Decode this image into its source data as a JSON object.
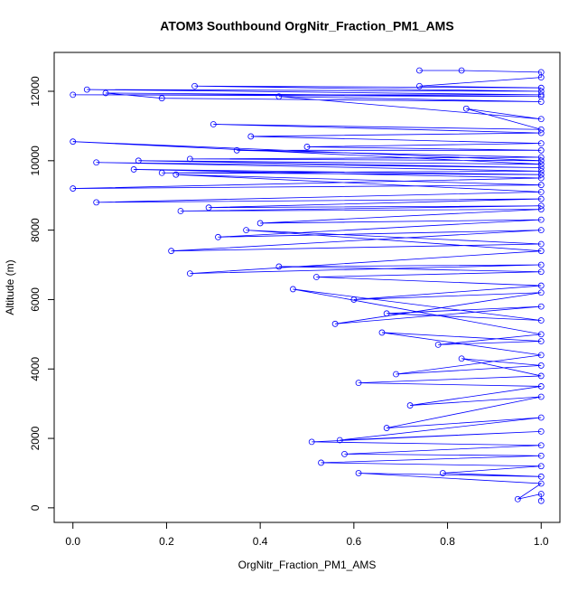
{
  "chart_data": {
    "type": "line",
    "title": "ATOM3 Southbound OrgNitr_Fraction_PM1_AMS",
    "x_label": "OrgNitr_Fraction_PM1_AMS",
    "y_label": "Altitude (m)",
    "xlim": [
      -0.04,
      1.04
    ],
    "ylim": [
      -420,
      13120
    ],
    "xticks": [
      {
        "value": 0,
        "label": "0.0"
      },
      0.2,
      0.4,
      0.6,
      0.8,
      {
        "value": 1,
        "label": "1.0"
      }
    ],
    "yticks": [
      0,
      2000,
      4000,
      6000,
      8000,
      10000,
      12000
    ],
    "x": [
      0.74,
      0.83,
      1,
      1,
      0.74,
      1,
      0.26,
      1,
      0.03,
      1,
      0.0,
      1,
      0.07,
      0.19,
      1,
      0.44,
      1,
      0.84,
      1,
      0.3,
      1,
      0.38,
      1,
      0.5,
      1,
      0.35,
      1,
      0.25,
      1,
      0.0,
      1,
      0.14,
      1,
      0.05,
      1,
      0.19,
      1,
      0.13,
      1,
      0.0,
      1,
      0.22,
      1,
      0.05,
      1,
      0.29,
      1,
      0.23,
      1,
      0.4,
      1,
      0.31,
      1,
      0.21,
      1,
      0.37,
      1,
      0.25,
      1,
      0.44,
      1,
      0.52,
      1,
      0.6,
      1,
      0.56,
      1,
      0.67,
      1,
      0.47,
      1,
      0.78,
      1,
      0.66,
      1,
      0.69,
      1,
      0.83,
      1,
      0.61,
      1,
      0.72,
      1,
      0.67,
      1,
      0.57,
      1,
      0.51,
      1,
      0.58,
      1,
      0.53,
      1,
      0.79,
      1,
      0.61,
      1,
      0.95,
      1,
      1
    ],
    "series": [
      {
        "name": "Altitude",
        "color": "#0000ff",
        "values": [
          12600,
          12600,
          12550,
          12400,
          12150,
          12100,
          12150,
          12000,
          12050,
          11900,
          11900,
          11850,
          11950,
          11800,
          11700,
          11850,
          11200,
          11500,
          10900,
          11050,
          10800,
          10700,
          10500,
          10400,
          10300,
          10300,
          10100,
          10050,
          10000,
          10550,
          9900,
          10000,
          9800,
          9950,
          9700,
          9650,
          9600,
          9750,
          9500,
          9200,
          9300,
          9600,
          9100,
          8800,
          8900,
          8650,
          8700,
          8550,
          8600,
          8200,
          8300,
          7800,
          8000,
          7400,
          7600,
          8000,
          7400,
          6750,
          7000,
          6950,
          6800,
          6650,
          6400,
          6000,
          6200,
          5300,
          5800,
          5600,
          5400,
          6300,
          5000,
          4700,
          4800,
          5050,
          4400,
          3850,
          4100,
          4300,
          3800,
          3600,
          3500,
          2950,
          3200,
          2300,
          2600,
          1950,
          2200,
          1900,
          1800,
          1550,
          1500,
          1300,
          1200,
          1000,
          900,
          1000,
          700,
          250,
          400,
          200
        ]
      }
    ]
  }
}
